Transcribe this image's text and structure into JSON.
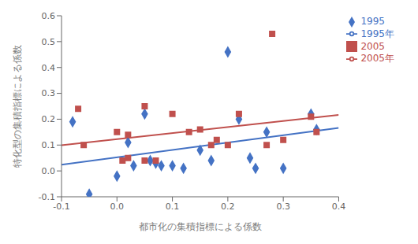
{
  "chart_data": {
    "type": "scatter",
    "xlabel": "都市化の集積指標による係数",
    "ylabel": "特化型の集積指標による係数",
    "xlim": [
      -0.1,
      0.4
    ],
    "ylim": [
      -0.1,
      0.6
    ],
    "xticks": [
      -0.1,
      {
        "value": 0,
        "label": "0.0"
      },
      0.1,
      0.2,
      0.3,
      0.4
    ],
    "yticks": [
      -0.1,
      {
        "value": 0,
        "label": "0.0"
      },
      0.1,
      0.2,
      0.3,
      0.4,
      0.5,
      0.6
    ],
    "grid": false,
    "legend": "upper right",
    "series": [
      {
        "name": "1995",
        "type": "scatter",
        "marker": "diamond",
        "color": "#4472C4",
        "x": [
          -0.08,
          -0.05,
          0.0,
          0.02,
          0.03,
          0.05,
          0.06,
          0.07,
          0.08,
          0.1,
          0.12,
          0.15,
          0.17,
          0.2,
          0.22,
          0.24,
          0.25,
          0.27,
          0.3,
          0.35,
          0.36
        ],
        "values": [
          0.19,
          -0.09,
          -0.02,
          0.11,
          0.02,
          0.22,
          0.04,
          0.03,
          0.02,
          0.02,
          0.01,
          0.08,
          0.04,
          0.46,
          0.2,
          0.05,
          0.01,
          0.15,
          0.01,
          0.22,
          0.16
        ]
      },
      {
        "name": "2005",
        "type": "scatter",
        "marker": "square",
        "color": "#C0504D",
        "x": [
          -0.07,
          -0.06,
          0.0,
          0.01,
          0.02,
          0.02,
          0.05,
          0.05,
          0.07,
          0.1,
          0.13,
          0.15,
          0.17,
          0.18,
          0.2,
          0.22,
          0.27,
          0.28,
          0.3,
          0.35,
          0.36
        ],
        "values": [
          0.24,
          0.1,
          0.15,
          0.04,
          0.05,
          0.14,
          0.25,
          0.04,
          0.04,
          0.22,
          0.15,
          0.16,
          0.1,
          0.12,
          0.1,
          0.22,
          0.1,
          0.53,
          0.12,
          0.21,
          0.15
        ]
      },
      {
        "name": "1995年",
        "type": "line",
        "color": "#4472C4",
        "x": [
          -0.1,
          0.4
        ],
        "values": [
          0.0238,
          0.1665
        ]
      },
      {
        "name": "2005年",
        "type": "line",
        "color": "#C0504D",
        "x": [
          -0.1,
          0.4
        ],
        "values": [
          0.099,
          0.2164
        ]
      }
    ]
  }
}
